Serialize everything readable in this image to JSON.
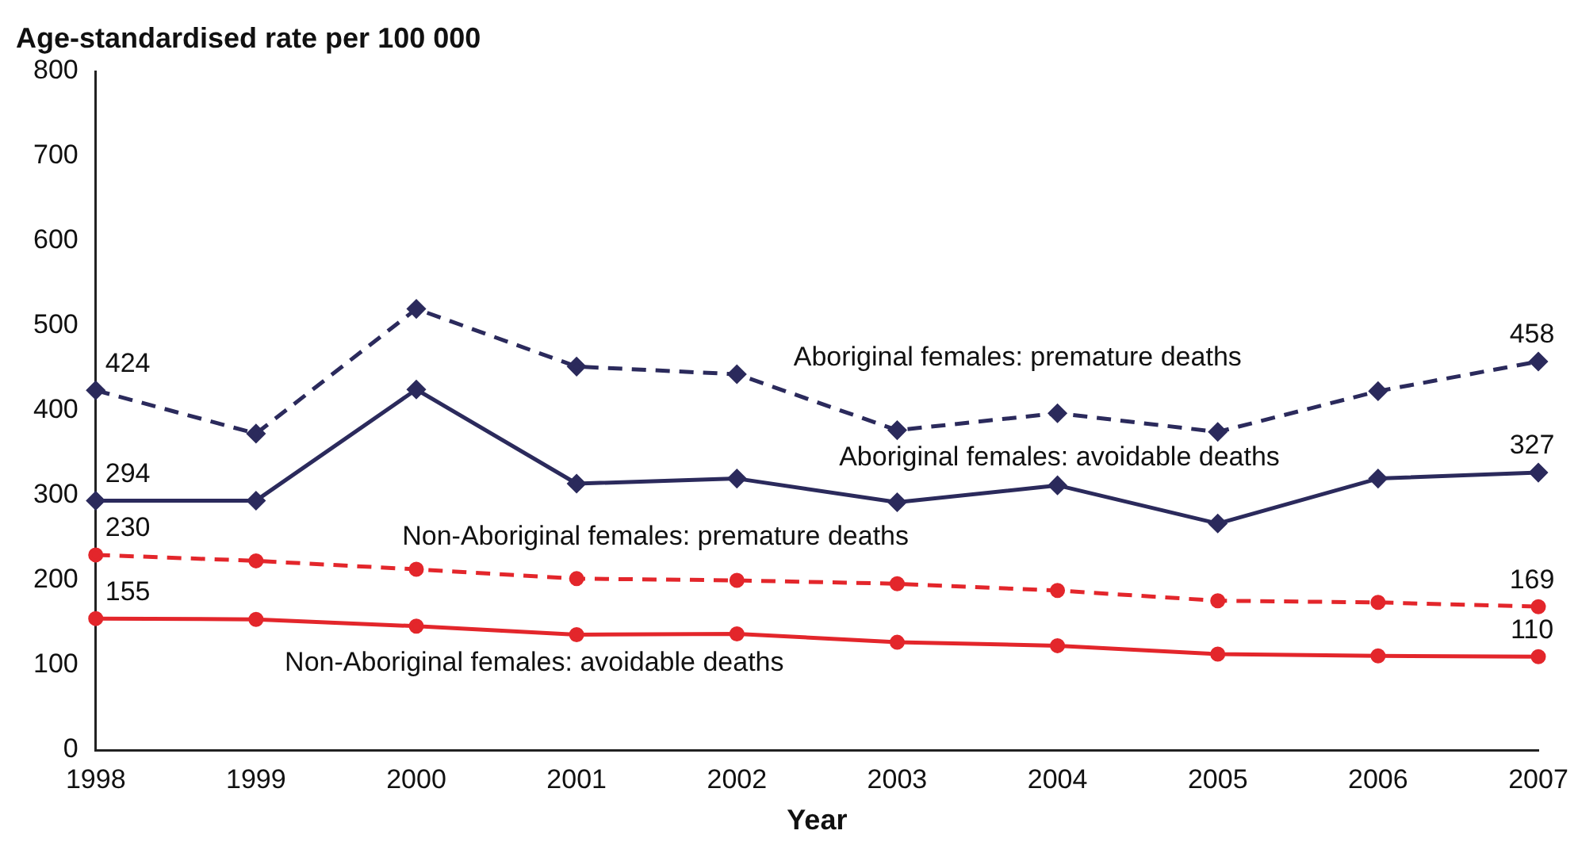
{
  "chart_data": {
    "type": "line",
    "ylabel": "Age-standardised rate per 100 000",
    "xlabel": "Year",
    "categories": [
      "1998",
      "1999",
      "2000",
      "2001",
      "2002",
      "2003",
      "2004",
      "2005",
      "2006",
      "2007"
    ],
    "ylim": [
      0,
      800
    ],
    "yticks": [
      0,
      100,
      200,
      300,
      400,
      500,
      600,
      700,
      800
    ],
    "grid": false,
    "legend": false,
    "series": [
      {
        "name": "Aboriginal females: premature deaths",
        "color": "#2b2a5c",
        "line_style": "dashed",
        "marker": "diamond",
        "values": [
          424,
          373,
          520,
          452,
          443,
          377,
          397,
          375,
          423,
          458
        ],
        "value_labels": [
          "424",
          null,
          null,
          null,
          null,
          null,
          null,
          null,
          null,
          "458"
        ]
      },
      {
        "name": "Aboriginal females: avoidable deaths",
        "color": "#2b2a5c",
        "line_style": "solid",
        "marker": "diamond",
        "values": [
          294,
          294,
          425,
          314,
          320,
          292,
          312,
          267,
          320,
          327
        ],
        "value_labels": [
          "294",
          null,
          null,
          null,
          null,
          null,
          null,
          null,
          null,
          "327"
        ]
      },
      {
        "name": "Non-Aboriginal females: premature deaths",
        "color": "#e3262b",
        "line_style": "dashed",
        "marker": "circle",
        "values": [
          230,
          223,
          213,
          202,
          200,
          196,
          188,
          176,
          174,
          169
        ],
        "value_labels": [
          "230",
          null,
          null,
          null,
          null,
          null,
          null,
          null,
          null,
          "169"
        ]
      },
      {
        "name": "Non-Aboriginal females: avoidable deaths",
        "color": "#e3262b",
        "line_style": "solid",
        "marker": "circle",
        "values": [
          155,
          154,
          146,
          136,
          137,
          127,
          123,
          113,
          111,
          110
        ],
        "value_labels": [
          "155",
          null,
          null,
          null,
          null,
          null,
          null,
          null,
          null,
          "110"
        ]
      }
    ]
  }
}
